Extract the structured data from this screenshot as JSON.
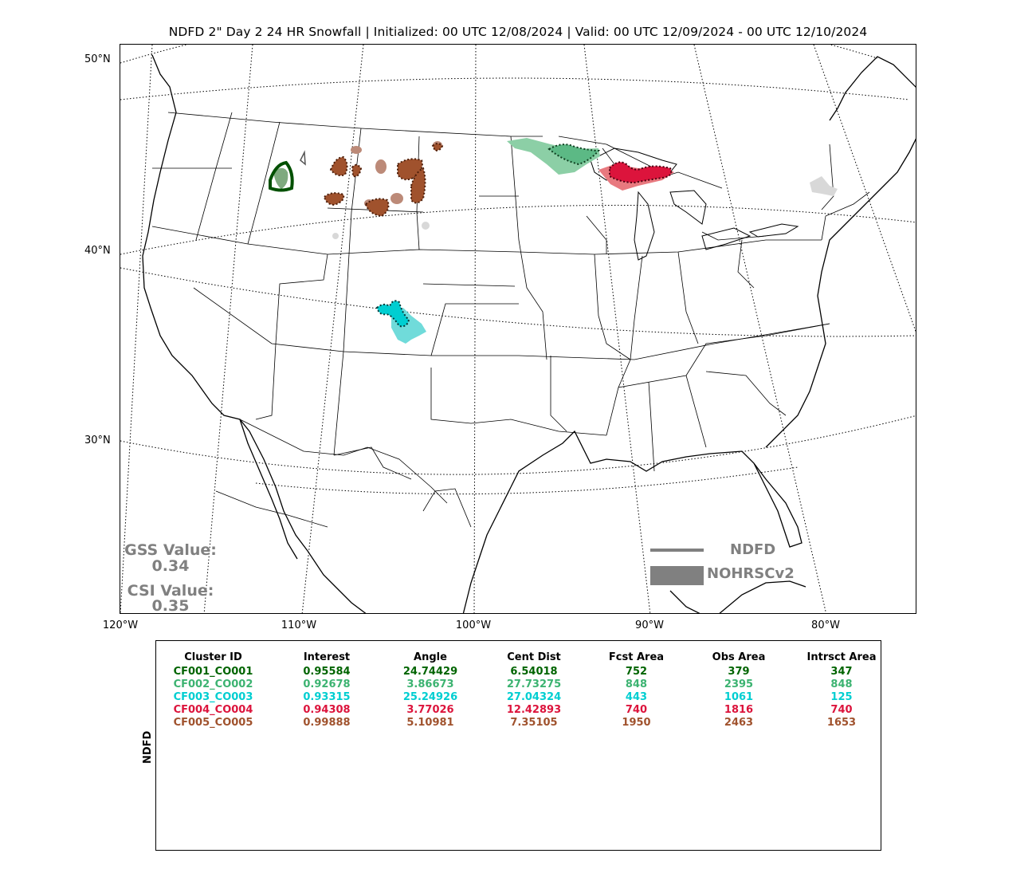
{
  "title": "NDFD 2\" Day 2 24 HR Snowfall | Initialized: 00 UTC 12/08/2024 | Valid: 00 UTC 12/09/2024 - 00 UTC 12/10/2024",
  "axes": {
    "lat_labels": [
      "50°N",
      "40°N",
      "30°N"
    ],
    "lon_labels": [
      "120°W",
      "110°W",
      "100°W",
      "90°W",
      "80°W"
    ]
  },
  "stats": {
    "gss_label": "GSS Value:",
    "gss_value": "0.34",
    "csi_label": "CSI Value:",
    "csi_value": "0.35"
  },
  "legend": {
    "line_label": "NDFD",
    "fill_label": "NOHRSCv2",
    "color": "#808080"
  },
  "table": {
    "ylabel": "NDFD",
    "headers": [
      "Cluster ID",
      "Interest",
      "Angle",
      "Cent Dist",
      "Fcst Area",
      "Obs Area",
      "Intrsct Area"
    ],
    "rows": [
      {
        "id": "CF001_CO001",
        "interest": "0.95584",
        "angle": "24.74429",
        "cent_dist": "6.54018",
        "fcst_area": "752",
        "obs_area": "379",
        "intrsct_area": "347",
        "color": "#006400"
      },
      {
        "id": "CF002_CO002",
        "interest": "0.92678",
        "angle": "3.86673",
        "cent_dist": "27.73275",
        "fcst_area": "848",
        "obs_area": "2395",
        "intrsct_area": "848",
        "color": "#3cb371"
      },
      {
        "id": "CF003_CO003",
        "interest": "0.93315",
        "angle": "25.24926",
        "cent_dist": "27.04324",
        "fcst_area": "443",
        "obs_area": "1061",
        "intrsct_area": "125",
        "color": "#00ced1"
      },
      {
        "id": "CF004_CO004",
        "interest": "0.94308",
        "angle": "3.77026",
        "cent_dist": "12.42893",
        "fcst_area": "740",
        "obs_area": "1816",
        "intrsct_area": "740",
        "color": "#dc143c"
      },
      {
        "id": "CF005_CO005",
        "interest": "0.99888",
        "angle": "5.10981",
        "cent_dist": "7.35105",
        "fcst_area": "1950",
        "obs_area": "2463",
        "intrsct_area": "1653",
        "color": "#a0522d"
      }
    ]
  }
}
